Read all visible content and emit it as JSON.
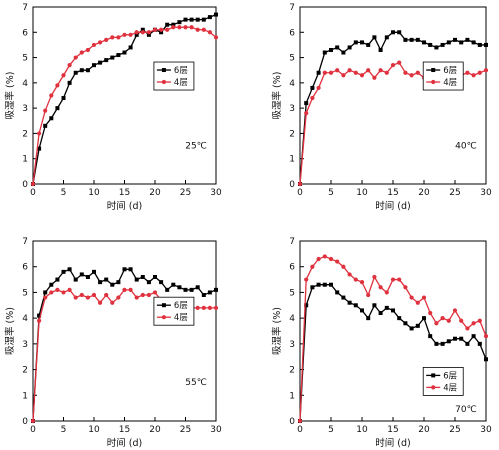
{
  "chart_data": [
    {
      "type": "line",
      "annotation": "25℃",
      "xlabel": "时间 (d)",
      "ylabel": "吸湿率 (%)",
      "xlim": [
        0,
        30
      ],
      "ylim": [
        0,
        7
      ],
      "xticks": [
        "0",
        "5",
        "10",
        "15",
        "20",
        "25",
        "30"
      ],
      "yticks": [
        "0",
        "1",
        "2",
        "3",
        "4",
        "5",
        "6",
        "7"
      ],
      "legend_position": "right-middle",
      "series": [
        {
          "name": "6层",
          "color": "#000000",
          "marker": "square",
          "x": [
            0,
            1,
            2,
            3,
            4,
            5,
            6,
            7,
            8,
            9,
            10,
            11,
            12,
            13,
            14,
            15,
            16,
            17,
            18,
            19,
            20,
            21,
            22,
            23,
            24,
            25,
            26,
            27,
            28,
            29,
            30
          ],
          "y": [
            0,
            1.4,
            2.3,
            2.6,
            3.0,
            3.4,
            4.0,
            4.4,
            4.5,
            4.5,
            4.7,
            4.8,
            4.9,
            5.0,
            5.1,
            5.2,
            5.4,
            5.9,
            6.1,
            5.9,
            6.1,
            6.0,
            6.3,
            6.3,
            6.4,
            6.5,
            6.5,
            6.5,
            6.5,
            6.6,
            6.7
          ]
        },
        {
          "name": "4层",
          "color": "#e0313e",
          "marker": "circle",
          "x": [
            0,
            1,
            2,
            3,
            4,
            5,
            6,
            7,
            8,
            9,
            10,
            11,
            12,
            13,
            14,
            15,
            16,
            17,
            18,
            19,
            20,
            21,
            22,
            23,
            24,
            25,
            26,
            27,
            28,
            29,
            30
          ],
          "y": [
            0,
            2.0,
            2.9,
            3.5,
            3.9,
            4.3,
            4.7,
            5.0,
            5.2,
            5.3,
            5.5,
            5.6,
            5.7,
            5.8,
            5.8,
            5.9,
            5.9,
            6.0,
            6.0,
            6.0,
            6.1,
            6.1,
            6.1,
            6.2,
            6.2,
            6.2,
            6.2,
            6.1,
            6.1,
            6.0,
            5.8
          ]
        }
      ]
    },
    {
      "type": "line",
      "annotation": "40℃",
      "xlabel": "时间 (d)",
      "ylabel": "吸湿率 (%)",
      "xlim": [
        0,
        30
      ],
      "ylim": [
        0,
        7
      ],
      "xticks": [
        "0",
        "5",
        "10",
        "15",
        "20",
        "25",
        "30"
      ],
      "yticks": [
        "0",
        "1",
        "2",
        "3",
        "4",
        "5",
        "6",
        "7"
      ],
      "legend_position": "right-middle",
      "series": [
        {
          "name": "6层",
          "color": "#000000",
          "marker": "square",
          "x": [
            0,
            1,
            2,
            3,
            4,
            5,
            6,
            7,
            8,
            9,
            10,
            11,
            12,
            13,
            14,
            15,
            16,
            17,
            18,
            19,
            20,
            21,
            22,
            23,
            24,
            25,
            26,
            27,
            28,
            29,
            30
          ],
          "y": [
            0,
            3.2,
            3.8,
            4.4,
            5.2,
            5.3,
            5.4,
            5.2,
            5.4,
            5.6,
            5.6,
            5.5,
            5.8,
            5.3,
            5.8,
            6.0,
            6.0,
            5.7,
            5.7,
            5.7,
            5.6,
            5.5,
            5.4,
            5.5,
            5.6,
            5.7,
            5.6,
            5.7,
            5.6,
            5.5,
            5.5
          ]
        },
        {
          "name": "4层",
          "color": "#e0313e",
          "marker": "circle",
          "x": [
            0,
            1,
            2,
            3,
            4,
            5,
            6,
            7,
            8,
            9,
            10,
            11,
            12,
            13,
            14,
            15,
            16,
            17,
            18,
            19,
            20,
            21,
            22,
            23,
            24,
            25,
            26,
            27,
            28,
            29,
            30
          ],
          "y": [
            0,
            2.8,
            3.4,
            3.8,
            4.4,
            4.4,
            4.5,
            4.3,
            4.5,
            4.4,
            4.3,
            4.5,
            4.2,
            4.5,
            4.4,
            4.7,
            4.8,
            4.4,
            4.3,
            4.4,
            4.2,
            4.1,
            4.1,
            4.2,
            4.3,
            4.4,
            4.3,
            4.4,
            4.3,
            4.4,
            4.5
          ]
        }
      ]
    },
    {
      "type": "line",
      "annotation": "55℃",
      "xlabel": "时间 (d)",
      "ylabel": "吸湿率 (%)",
      "xlim": [
        0,
        30
      ],
      "ylim": [
        0,
        7
      ],
      "xticks": [
        "0",
        "5",
        "10",
        "15",
        "20",
        "25",
        "30"
      ],
      "yticks": [
        "0",
        "1",
        "2",
        "3",
        "4",
        "5",
        "6",
        "7"
      ],
      "legend_position": "right-middle",
      "series": [
        {
          "name": "6层",
          "color": "#000000",
          "marker": "square",
          "x": [
            0,
            1,
            2,
            3,
            4,
            5,
            6,
            7,
            8,
            9,
            10,
            11,
            12,
            13,
            14,
            15,
            16,
            17,
            18,
            19,
            20,
            21,
            22,
            23,
            24,
            25,
            26,
            27,
            28,
            29,
            30
          ],
          "y": [
            0,
            4.1,
            5.0,
            5.3,
            5.5,
            5.8,
            5.9,
            5.5,
            5.7,
            5.6,
            5.8,
            5.4,
            5.5,
            5.3,
            5.4,
            5.9,
            5.9,
            5.5,
            5.6,
            5.4,
            5.6,
            5.4,
            5.1,
            5.3,
            5.2,
            5.1,
            5.1,
            5.2,
            4.9,
            5.0,
            5.1
          ]
        },
        {
          "name": "4层",
          "color": "#e0313e",
          "marker": "circle",
          "x": [
            0,
            1,
            2,
            3,
            4,
            5,
            6,
            7,
            8,
            9,
            10,
            11,
            12,
            13,
            14,
            15,
            16,
            17,
            18,
            19,
            20,
            21,
            22,
            23,
            24,
            25,
            26,
            27,
            28,
            29,
            30
          ],
          "y": [
            0,
            3.9,
            4.8,
            5.0,
            5.1,
            5.0,
            5.1,
            4.8,
            4.9,
            4.8,
            4.9,
            4.6,
            4.9,
            4.6,
            4.8,
            5.1,
            5.1,
            4.8,
            4.9,
            4.9,
            5.0,
            4.7,
            4.4,
            4.6,
            4.5,
            4.4,
            4.4,
            4.4,
            4.4,
            4.4,
            4.4
          ]
        }
      ]
    },
    {
      "type": "line",
      "annotation": "70℃",
      "xlabel": "时间 (d)",
      "ylabel": "吸湿率 (%)",
      "xlim": [
        0,
        30
      ],
      "ylim": [
        0,
        7
      ],
      "xticks": [
        "0",
        "5",
        "10",
        "15",
        "20",
        "25",
        "30"
      ],
      "yticks": [
        "0",
        "1",
        "2",
        "3",
        "4",
        "5",
        "6",
        "7"
      ],
      "legend_position": "bottom-right",
      "series": [
        {
          "name": "6层",
          "color": "#000000",
          "marker": "square",
          "x": [
            0,
            1,
            2,
            3,
            4,
            5,
            6,
            7,
            8,
            9,
            10,
            11,
            12,
            13,
            14,
            15,
            16,
            17,
            18,
            19,
            20,
            21,
            22,
            23,
            24,
            25,
            26,
            27,
            28,
            29,
            30
          ],
          "y": [
            0,
            4.5,
            5.2,
            5.3,
            5.3,
            5.3,
            5.0,
            4.8,
            4.6,
            4.5,
            4.3,
            4.0,
            4.5,
            4.2,
            4.4,
            4.3,
            4.0,
            3.8,
            3.6,
            3.7,
            4.0,
            3.3,
            3.0,
            3.0,
            3.1,
            3.2,
            3.2,
            3.0,
            3.3,
            3.0,
            2.4
          ]
        },
        {
          "name": "4层",
          "color": "#e0313e",
          "marker": "circle",
          "x": [
            0,
            1,
            2,
            3,
            4,
            5,
            6,
            7,
            8,
            9,
            10,
            11,
            12,
            13,
            14,
            15,
            16,
            17,
            18,
            19,
            20,
            21,
            22,
            23,
            24,
            25,
            26,
            27,
            28,
            29,
            30
          ],
          "y": [
            0,
            5.5,
            6.0,
            6.3,
            6.4,
            6.3,
            6.2,
            6.0,
            5.7,
            5.5,
            5.4,
            4.9,
            5.6,
            5.2,
            5.0,
            5.5,
            5.5,
            5.2,
            4.8,
            4.6,
            4.8,
            4.2,
            3.8,
            4.0,
            3.9,
            4.3,
            3.9,
            3.6,
            3.8,
            3.9,
            3.3
          ]
        }
      ]
    }
  ]
}
